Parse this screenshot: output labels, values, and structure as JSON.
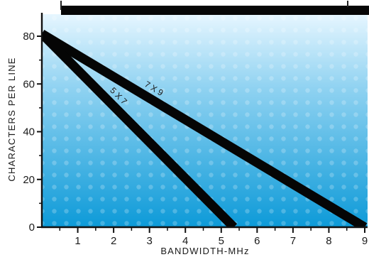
{
  "chart_data": {
    "type": "line",
    "xlabel": "BANDWIDTH-MHz",
    "ylabel": "CHARACTERS PER LINE",
    "xlim": [
      0,
      9
    ],
    "ylim": [
      0,
      85
    ],
    "x_ticks": [
      1,
      2,
      3,
      4,
      5,
      6,
      7,
      8,
      9
    ],
    "x_tick_labels": [
      "1",
      "2",
      "3",
      "4",
      "5",
      "6",
      "7",
      "8",
      "9"
    ],
    "y_ticks": [
      0,
      20,
      40,
      60,
      80
    ],
    "y_tick_labels": [
      "0",
      "20",
      "40",
      "60",
      "80"
    ],
    "grid": false,
    "legend": "none",
    "series": [
      {
        "name": "7 X 9",
        "x": [
          0,
          9
        ],
        "y": [
          81,
          0
        ],
        "color": "#050505"
      },
      {
        "name": "5 X 7",
        "x": [
          0,
          5.35
        ],
        "y": [
          81,
          0
        ],
        "color": "#050505"
      }
    ],
    "colors": {
      "plot_background_top": "#e6f6ff",
      "plot_background_bottom": "#0d9ad8",
      "axis": "#111111",
      "frame_bar": "#060606"
    }
  }
}
